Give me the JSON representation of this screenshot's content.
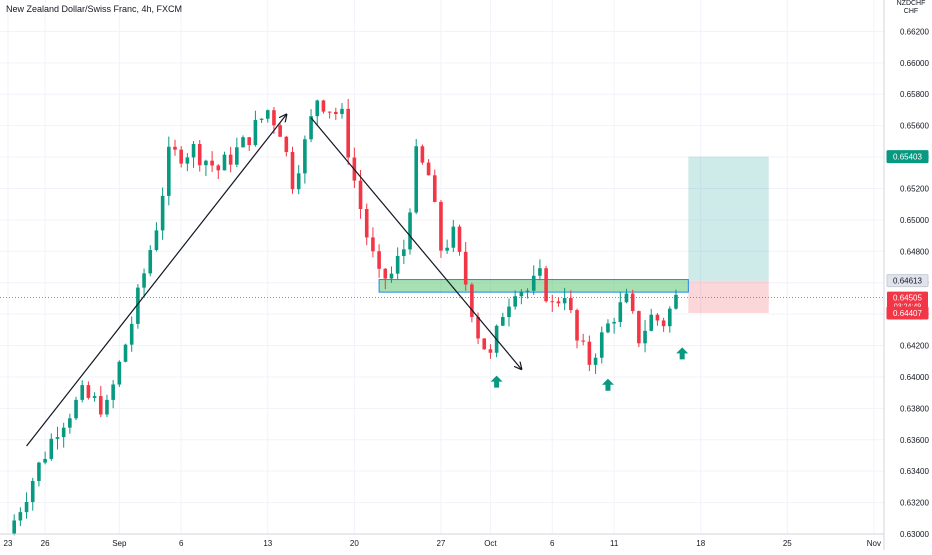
{
  "chart_data": {
    "type": "candlestick",
    "title": "New Zealand Dollar/Swiss Franc, 4h, FXCM",
    "currency_label": [
      "NZDCHF",
      "CHF"
    ],
    "y_range": [
      0.63,
      0.664
    ],
    "price_labels": [
      "0.66200",
      "0.66000",
      "0.65800",
      "0.65600",
      "0.65400",
      "0.65200",
      "0.65000",
      "0.64800",
      "0.64600",
      "0.64400",
      "0.64200",
      "0.64000",
      "0.63800",
      "0.63600",
      "0.63400",
      "0.63200",
      "0.63000"
    ],
    "price_values": [
      0.662,
      0.66,
      0.658,
      0.656,
      0.654,
      0.652,
      0.65,
      0.648,
      0.646,
      0.644,
      0.642,
      0.64,
      0.638,
      0.636,
      0.634,
      0.632,
      0.63
    ],
    "x_labels": [
      "23",
      "26",
      "Sep",
      "6",
      "13",
      "20",
      "27",
      "Oct",
      "6",
      "11",
      "18",
      "25",
      "Nov"
    ],
    "x_label_days": [
      -8,
      -5,
      1,
      6,
      13,
      20,
      27,
      31,
      36,
      41,
      48,
      55,
      62
    ],
    "markers": {
      "target_label": "0.65403",
      "target_value": 0.65403,
      "entry_label": "0.64613",
      "entry_value": 0.64613,
      "last_price_label": "0.64505",
      "last_price_value": 0.64505,
      "countdown_label": "03:24:49",
      "stop_label": "0.64407",
      "stop_value": 0.64407
    },
    "colors": {
      "up": "#089981",
      "down": "#f23645",
      "grid": "#f0f3fa",
      "zone": "#3cba54",
      "target": "#26a69a",
      "stop": "#f23645"
    },
    "zone": {
      "low": 0.6454,
      "high": 0.6462,
      "start_day": 22,
      "end_day": 47
    },
    "position": {
      "start_day": 47,
      "end_day": 53.5,
      "entry": 0.64613,
      "target": 0.65403,
      "stop": 0.64407
    },
    "anchors": [
      {
        "day": -8,
        "price": 0.63
      },
      {
        "day": -6,
        "price": 0.6335
      },
      {
        "day": -4,
        "price": 0.6368
      },
      {
        "day": -2,
        "price": 0.6388
      },
      {
        "day": 0,
        "price": 0.638
      },
      {
        "day": 2,
        "price": 0.6435
      },
      {
        "day": 4,
        "price": 0.6497
      },
      {
        "day": 5,
        "price": 0.654
      },
      {
        "day": 7,
        "price": 0.6545
      },
      {
        "day": 9,
        "price": 0.6532
      },
      {
        "day": 11,
        "price": 0.6548
      },
      {
        "day": 13,
        "price": 0.657
      },
      {
        "day": 14,
        "price": 0.6558
      },
      {
        "day": 15,
        "price": 0.6525
      },
      {
        "day": 16,
        "price": 0.6548
      },
      {
        "day": 17,
        "price": 0.6578
      },
      {
        "day": 19,
        "price": 0.6565
      },
      {
        "day": 20,
        "price": 0.6525
      },
      {
        "day": 21,
        "price": 0.649
      },
      {
        "day": 22,
        "price": 0.6462
      },
      {
        "day": 23,
        "price": 0.6465
      },
      {
        "day": 24,
        "price": 0.6482
      },
      {
        "day": 25,
        "price": 0.654
      },
      {
        "day": 26,
        "price": 0.6528
      },
      {
        "day": 27,
        "price": 0.6482
      },
      {
        "day": 28,
        "price": 0.649
      },
      {
        "day": 29,
        "price": 0.646
      },
      {
        "day": 30,
        "price": 0.6428
      },
      {
        "day": 31,
        "price": 0.6412
      },
      {
        "day": 32,
        "price": 0.6442
      },
      {
        "day": 33,
        "price": 0.6458
      },
      {
        "day": 34,
        "price": 0.6455
      },
      {
        "day": 35,
        "price": 0.6463
      },
      {
        "day": 36,
        "price": 0.6445
      },
      {
        "day": 37,
        "price": 0.6455
      },
      {
        "day": 38,
        "price": 0.6422
      },
      {
        "day": 39,
        "price": 0.641
      },
      {
        "day": 40,
        "price": 0.6425
      },
      {
        "day": 41,
        "price": 0.644
      },
      {
        "day": 42,
        "price": 0.6448
      },
      {
        "day": 43,
        "price": 0.6425
      },
      {
        "day": 44,
        "price": 0.6438
      },
      {
        "day": 45,
        "price": 0.6435
      },
      {
        "day": 46,
        "price": 0.645
      }
    ],
    "trend_arrows": [
      {
        "from_day": -6.5,
        "from_price": 0.6356,
        "to_day": 14.5,
        "to_price": 0.6567
      },
      {
        "from_day": 16.5,
        "from_price": 0.6565,
        "to_day": 33.5,
        "to_price": 0.6405
      }
    ],
    "up_arrows": [
      {
        "day": 31.5,
        "price": 0.6397
      },
      {
        "day": 40.5,
        "price": 0.6395
      },
      {
        "day": 46.5,
        "price": 0.6415
      }
    ]
  }
}
